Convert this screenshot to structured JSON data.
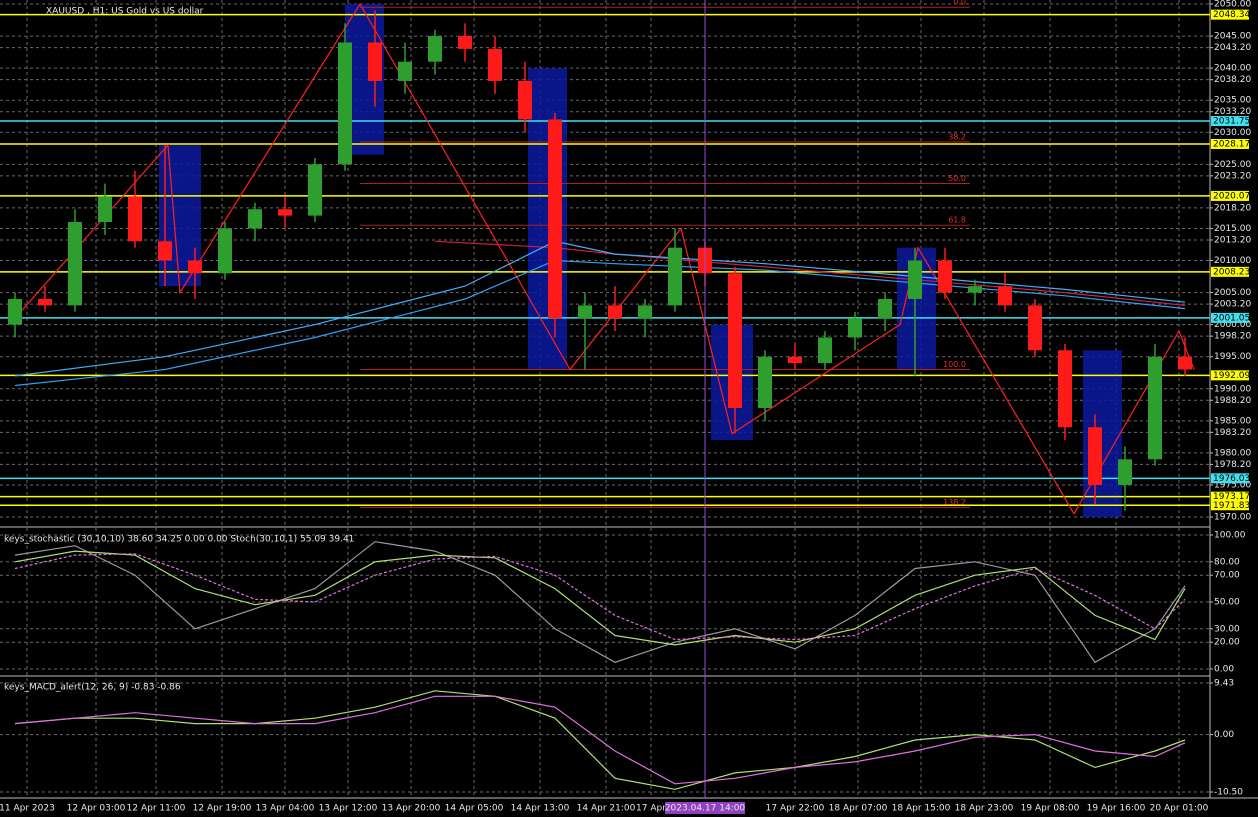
{
  "chart_data": [
    {
      "type": "candlestick",
      "title": "XAUUSD , H1: US Gold vs US dollar",
      "up_color": "#2e9e2e",
      "down_color": "#ff1a1a",
      "open": [
        2000,
        2004,
        2003,
        2016,
        2020,
        2013,
        2010,
        2008,
        2015,
        2018,
        2017,
        2025,
        2044,
        2038,
        2041,
        2045,
        2043,
        2038,
        2032,
        2001,
        2003,
        2001,
        2003,
        2012,
        2008,
        1987,
        1995,
        1994,
        1998,
        2001,
        2004,
        2010,
        2005,
        2006,
        2003,
        1996,
        1984,
        1975,
        1979,
        1995
      ],
      "high": [
        2005,
        2006,
        2018,
        2022,
        2024,
        2028,
        2012,
        2016,
        2019,
        2020,
        2026,
        2047,
        2049,
        2044,
        2046,
        2047,
        2045,
        2041,
        2033,
        2005,
        2006,
        2004,
        2015,
        2013,
        2009,
        1996,
        1997,
        1999,
        2002,
        2005,
        2012,
        2012,
        2007,
        2008,
        2004,
        1997,
        1986,
        1981,
        1997,
        1998
      ],
      "low": [
        1998,
        2002,
        2002,
        2014,
        2012,
        2006,
        2004,
        2007,
        2013,
        2015,
        2016,
        2024,
        2034,
        2036,
        2039,
        2041,
        2036,
        2030,
        1998,
        1993,
        1999,
        1998,
        2002,
        2006,
        1983,
        1985,
        1993,
        1993,
        1996,
        1999,
        1992,
        2004,
        2003,
        2002,
        1995,
        1982,
        1972,
        1971,
        1978,
        1992
      ],
      "close": [
        2004,
        2003,
        2016,
        2020,
        2013,
        2010,
        2008,
        2015,
        2018,
        2017,
        2025,
        2044,
        2038,
        2041,
        2045,
        2043,
        2038,
        2032,
        2001,
        2003,
        2001,
        2003,
        2012,
        2008,
        1987,
        1995,
        1994,
        1998,
        2001,
        2004,
        2010,
        2005,
        2006,
        2003,
        1996,
        1984,
        1975,
        1979,
        1995,
        1993
      ],
      "ylim": [
        1970,
        2050
      ],
      "yticks": [
        {
          "value": 2050,
          "label": "2050.00"
        },
        {
          "value": 2045,
          "label": "2045.00"
        },
        {
          "value": 2043.2,
          "label": "2043.20"
        },
        {
          "value": 2040,
          "label": "2040.00"
        },
        {
          "value": 2038.2,
          "label": "2038.20"
        },
        {
          "value": 2035,
          "label": "2035.00"
        },
        {
          "value": 2033.2,
          "label": "2033.20"
        },
        {
          "value": 2030,
          "label": "2030.00"
        },
        {
          "value": 2025,
          "label": "2025.00"
        },
        {
          "value": 2023.2,
          "label": "2023.20"
        },
        {
          "value": 2018.2,
          "label": "2018.20"
        },
        {
          "value": 2015,
          "label": "2015.00"
        },
        {
          "value": 2013.2,
          "label": "2013.20"
        },
        {
          "value": 2010,
          "label": "2010.00"
        },
        {
          "value": 2005,
          "label": "2005.00"
        },
        {
          "value": 2003.2,
          "label": "2003.20"
        },
        {
          "value": 2000,
          "label": "2000.00"
        },
        {
          "value": 1998.2,
          "label": "1998.20"
        },
        {
          "value": 1995,
          "label": "1995.00"
        },
        {
          "value": 1990,
          "label": "1990.00"
        },
        {
          "value": 1988.2,
          "label": "1988.20"
        },
        {
          "value": 1985,
          "label": "1985.00"
        },
        {
          "value": 1983.2,
          "label": "1983.20"
        },
        {
          "value": 1980,
          "label": "1980.00"
        },
        {
          "value": 1978.2,
          "label": "1978.20"
        },
        {
          "value": 1975,
          "label": "1975.00"
        },
        {
          "value": 1970,
          "label": "1970.00"
        }
      ],
      "xticks": [
        {
          "value": 0.4,
          "label": "11 Apr 2023"
        },
        {
          "value": 2.7,
          "label": "12 Apr 03:00"
        },
        {
          "value": 4.7,
          "label": "12 Apr 11:00"
        },
        {
          "value": 6.9,
          "label": "12 Apr 19:00"
        },
        {
          "value": 9,
          "label": "13 Apr 04:00"
        },
        {
          "value": 11.1,
          "label": "13 Apr 12:00"
        },
        {
          "value": 13.2,
          "label": "13 Apr 20:00"
        },
        {
          "value": 15.3,
          "label": "14 Apr 05:00"
        },
        {
          "value": 17.5,
          "label": "14 Apr 13:00"
        },
        {
          "value": 19.7,
          "label": "14 Apr 21:00"
        },
        {
          "value": 21.2,
          "label": "17 Apr"
        },
        {
          "value": 26,
          "label": "17 Apr 22:00"
        },
        {
          "value": 28.1,
          "label": "18 Apr 07:00"
        },
        {
          "value": 30.2,
          "label": "18 Apr 15:00"
        },
        {
          "value": 32.3,
          "label": "18 Apr 23:00"
        },
        {
          "value": 34.5,
          "label": "19 Apr 08:00"
        },
        {
          "value": 36.7,
          "label": "19 Apr 16:00"
        },
        {
          "value": 38.8,
          "label": "20 Apr 01:00"
        }
      ],
      "levels": [
        {
          "value": 2048.34,
          "label": "2048.34",
          "color": "#ffff00"
        },
        {
          "value": 2031.75,
          "label": "2031.75",
          "color": "#40e0f0"
        },
        {
          "value": 2028.17,
          "label": "2028.17",
          "color": "#ffff00"
        },
        {
          "value": 2020.07,
          "label": "2020.07",
          "color": "#ffff00"
        },
        {
          "value": 2008.23,
          "label": "2008.23",
          "color": "#ffff00"
        },
        {
          "value": 2001.05,
          "label": "2001.05",
          "color": "#40e0f0"
        },
        {
          "value": 1992.09,
          "label": "1992.09",
          "color": "#ffff00"
        },
        {
          "value": 1976.03,
          "label": "1976.03",
          "color": "#40e0f0"
        },
        {
          "value": 1973.17,
          "label": "1973.17",
          "color": "#ffff00"
        },
        {
          "value": 1971.83,
          "label": "1971.83",
          "color": "#ffff00"
        }
      ],
      "fib": [
        {
          "value": 2049.5,
          "label": "0.0"
        },
        {
          "value": 2028.5,
          "label": "38.2"
        },
        {
          "value": 2022,
          "label": "50.0"
        },
        {
          "value": 2015.5,
          "label": "61.8"
        },
        {
          "value": 1993,
          "label": "100.0"
        },
        {
          "value": 1971.5,
          "label": "138.2"
        }
      ],
      "zones": [
        {
          "x": [
            4.8,
            6.2
          ],
          "y": [
            2006,
            2028
          ]
        },
        {
          "x": [
            11,
            12.3
          ],
          "y": [
            2026.5,
            2050
          ]
        },
        {
          "x": [
            17.1,
            18.4
          ],
          "y": [
            1993,
            2040
          ]
        },
        {
          "x": [
            23.2,
            24.6
          ],
          "y": [
            1982,
            2000
          ]
        },
        {
          "x": [
            29.4,
            30.7
          ],
          "y": [
            1993,
            2012
          ]
        },
        {
          "x": [
            35.6,
            36.9
          ],
          "y": [
            1970,
            1996
          ]
        }
      ],
      "lines": [
        {
          "color": "#ff2020",
          "x": [
            0,
            5.1,
            5.5,
            11.5,
            18.5,
            22.2,
            23.9,
            29.5,
            30.1,
            35.3,
            38.8,
            39.3
          ],
          "values": [
            2001,
            2028,
            2005,
            2050,
            1993,
            2015,
            1983,
            2000,
            2012,
            1970.5,
            1999,
            1993
          ]
        },
        {
          "color": "#d02040",
          "x": [
            14,
            18,
            20,
            25,
            30,
            35,
            39
          ],
          "values": [
            2013,
            2012,
            2011,
            2009,
            2007,
            2005,
            2003
          ]
        },
        {
          "color": "#40b0ff",
          "x": [
            0,
            5,
            10,
            15,
            18,
            20,
            25,
            30,
            35,
            39
          ],
          "values": [
            1992,
            1995,
            2000,
            2006,
            2013,
            2011,
            2009.5,
            2007.5,
            2005.5,
            2003.5
          ]
        },
        {
          "color": "#30a0f0",
          "x": [
            0,
            5,
            10,
            15,
            18,
            20,
            25,
            30,
            35,
            39
          ],
          "values": [
            1990.5,
            1993,
            1998,
            2004,
            2010,
            2009.5,
            2008.5,
            2006.5,
            2004.5,
            2002.5
          ]
        }
      ],
      "cursor": {
        "x": 23,
        "label": "2023.04.17 14:00"
      }
    },
    {
      "type": "line",
      "title": "keys_stochastic (30,10,10) 38.60 34.25 0.00 0.00 Stoch(30,10,1) 55.09 39.41",
      "x": [
        0,
        2,
        4,
        6,
        8,
        10,
        12,
        14,
        16,
        18,
        20,
        22,
        24,
        26,
        28,
        30,
        32,
        34,
        36,
        38,
        39
      ],
      "series": [
        {
          "color": "#9a9a9a",
          "values": [
            85,
            92,
            70,
            30,
            45,
            60,
            95,
            88,
            70,
            30,
            5,
            20,
            30,
            15,
            40,
            75,
            80,
            70,
            5,
            30,
            62
          ]
        },
        {
          "color": "#b0e070",
          "values": [
            80,
            88,
            85,
            60,
            48,
            55,
            80,
            85,
            83,
            60,
            25,
            18,
            25,
            20,
            30,
            55,
            70,
            76,
            40,
            22,
            60
          ]
        },
        {
          "color": "#e070e0",
          "dashed": true,
          "values": [
            75,
            85,
            86,
            70,
            52,
            50,
            70,
            82,
            84,
            70,
            40,
            22,
            24,
            22,
            25,
            45,
            62,
            75,
            55,
            30,
            52
          ]
        }
      ],
      "ylim": [
        0,
        100
      ],
      "yticks": [
        {
          "value": 100,
          "label": "100.00"
        },
        {
          "value": 80,
          "label": "80.00"
        },
        {
          "value": 70,
          "label": "70.00"
        },
        {
          "value": 50,
          "label": "50.00"
        },
        {
          "value": 30,
          "label": "30.00"
        },
        {
          "value": 20,
          "label": "20.00"
        },
        {
          "value": 0,
          "label": "0.00"
        }
      ]
    },
    {
      "type": "line",
      "title": "keys_MACD_alert(12, 26, 9) -0.83 -0.86",
      "x": [
        0,
        2,
        4,
        6,
        8,
        10,
        12,
        14,
        16,
        18,
        20,
        22,
        24,
        26,
        28,
        30,
        32,
        34,
        36,
        38,
        39
      ],
      "series": [
        {
          "color": "#b0e070",
          "values": [
            2,
            3,
            3,
            2,
            2,
            3,
            5,
            8,
            7,
            3,
            -8,
            -10,
            -7,
            -6,
            -4,
            -1,
            0,
            -1,
            -6,
            -3,
            -1
          ]
        },
        {
          "color": "#e070e0",
          "values": [
            2,
            3,
            4,
            3,
            2,
            2,
            4,
            7,
            7,
            5,
            -3,
            -9,
            -8,
            -6,
            -5,
            -3,
            -0.5,
            0,
            -3,
            -4,
            -1.5
          ]
        }
      ],
      "ylim": [
        -10.5,
        9.43
      ],
      "yticks": [
        {
          "value": 9.43,
          "label": "9.43"
        },
        {
          "value": 0,
          "label": "0.00"
        },
        {
          "value": -10.5,
          "label": "-10.50"
        }
      ]
    }
  ]
}
